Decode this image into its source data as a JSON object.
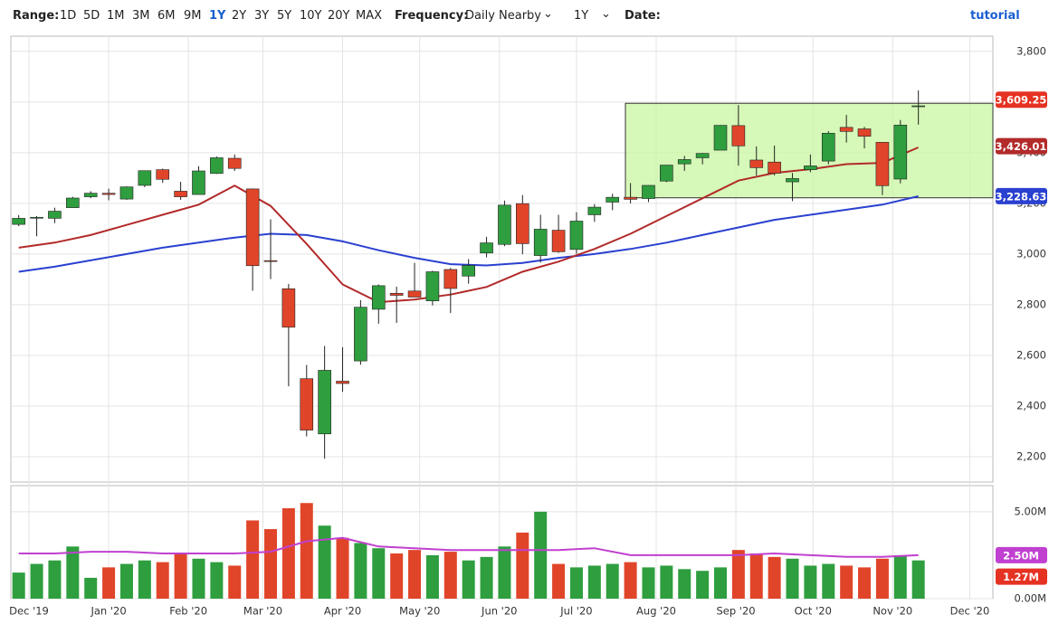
{
  "toolbar": {
    "range_label": "Range:",
    "ranges": [
      "1D",
      "5D",
      "1M",
      "3M",
      "6M",
      "9M",
      "1Y",
      "2Y",
      "3Y",
      "5Y",
      "10Y",
      "20Y",
      "MAX"
    ],
    "active_range": "1Y",
    "frequency_label": "Frequency:",
    "frequency": "Daily Nearby",
    "period": "1Y",
    "date_label": "Date:",
    "tutorial": "tutorial"
  },
  "chart_data": {
    "type": "candlestick",
    "xticks": [
      "Dec '19",
      "Jan '20",
      "Feb '20",
      "Mar '20",
      "Apr '20",
      "May '20",
      "Jun '20",
      "Jul '20",
      "Aug '20",
      "Sep '20",
      "Oct '20",
      "Nov '20",
      "Dec '20"
    ],
    "open": [
      3117,
      3144,
      3141,
      3183,
      3226,
      3240,
      3217,
      3271,
      3333,
      3248,
      3235,
      3318,
      3378,
      3257,
      2974,
      2863,
      2508,
      2290,
      2498,
      2578,
      2782,
      2845,
      2854,
      2815,
      2939,
      2913,
      3004,
      3038,
      3199,
      2994,
      3094,
      3018,
      3155,
      3205,
      3224,
      3219,
      3288,
      3356,
      3380,
      3410,
      3507,
      3371,
      3363,
      3285,
      3333,
      3367,
      3500,
      3494,
      3441,
      3296,
      3583
    ],
    "high": [
      3154,
      3150,
      3183,
      3226,
      3248,
      3258,
      3267,
      3329,
      3337,
      3285,
      3347,
      3385,
      3393,
      3259,
      3137,
      2882,
      2562,
      2637,
      2632,
      2818,
      2880,
      2871,
      2965,
      2934,
      2945,
      2980,
      3068,
      3211,
      3233,
      3155,
      3155,
      3165,
      3197,
      3238,
      3280,
      3272,
      3352,
      3387,
      3399,
      3509,
      3588,
      3425,
      3428,
      3320,
      3393,
      3485,
      3549,
      3502,
      3441,
      3529,
      3646
    ],
    "low": [
      3110,
      3070,
      3122,
      3183,
      3220,
      3212,
      3214,
      3264,
      3281,
      3214,
      3235,
      3316,
      3328,
      2855,
      2901,
      2478,
      2280,
      2192,
      2456,
      2563,
      2725,
      2728,
      2830,
      2797,
      2767,
      2883,
      2987,
      3031,
      2999,
      2966,
      3005,
      3001,
      3127,
      3173,
      3200,
      3205,
      3284,
      3328,
      3354,
      3410,
      3349,
      3310,
      3310,
      3209,
      3323,
      3354,
      3440,
      3417,
      3233,
      3279,
      3511
    ],
    "close": [
      3141,
      3145,
      3169,
      3221,
      3240,
      3235,
      3265,
      3329,
      3295,
      3226,
      3328,
      3380,
      3338,
      2954,
      2972,
      2711,
      2305,
      2541,
      2489,
      2790,
      2875,
      2837,
      2830,
      2930,
      2864,
      2955,
      3044,
      3193,
      3041,
      3098,
      3009,
      3130,
      3185,
      3224,
      3216,
      3271,
      3351,
      3373,
      3397,
      3508,
      3427,
      3341,
      3319,
      3298,
      3348,
      3477,
      3484,
      3465,
      3270,
      3509,
      3585
    ],
    "ma_fast": {
      "color": "#b22a2a",
      "values": [
        3025,
        3045,
        3075,
        3115,
        3155,
        3195,
        3270,
        3190,
        3040,
        2880,
        2810,
        2820,
        2840,
        2870,
        2930,
        2970,
        3020,
        3080,
        3150,
        3220,
        3290,
        3320,
        3335,
        3355,
        3360,
        3421
      ]
    },
    "ma_slow": {
      "color": "#2a40d0",
      "values": [
        2930,
        2950,
        2975,
        3000,
        3025,
        3045,
        3065,
        3080,
        3075,
        3050,
        3015,
        2985,
        2960,
        2955,
        2965,
        2985,
        3000,
        3020,
        3045,
        3075,
        3105,
        3135,
        3155,
        3175,
        3195,
        3228
      ]
    },
    "up_color": "#2e9e3e",
    "down_color": "#e0452a",
    "ylim": [
      2100,
      3860
    ],
    "yticks": [
      {
        "value": 2200,
        "label": "2,200"
      },
      {
        "value": 2400,
        "label": "2,400"
      },
      {
        "value": 2600,
        "label": "2,600"
      },
      {
        "value": 2800,
        "label": "2,800"
      },
      {
        "value": 3000,
        "label": "3,000"
      },
      {
        "value": 3200,
        "label": "3,200"
      },
      {
        "value": 3400,
        "label": "3,400"
      },
      {
        "value": 3600,
        "label": "3,600"
      },
      {
        "value": 3800,
        "label": "3,800"
      }
    ],
    "range_box": {
      "top": 3595,
      "bottom": 3222,
      "color": "#c8f5a0"
    },
    "price_labels": [
      {
        "value": 3609.25,
        "label": "3,609.25",
        "color": "#e53222"
      },
      {
        "value": 3426.01,
        "label": "3,426.01",
        "color": "#b22a2a"
      },
      {
        "value": 3228.63,
        "label": "3,228.63",
        "color": "#2a40d0"
      }
    ],
    "volume": [
      1.5,
      2.0,
      2.2,
      3.0,
      1.2,
      1.8,
      2.0,
      2.2,
      2.1,
      2.6,
      2.3,
      2.1,
      1.9,
      4.5,
      4.0,
      5.2,
      5.5,
      4.2,
      3.5,
      3.2,
      2.9,
      2.6,
      2.8,
      2.5,
      2.7,
      2.2,
      2.4,
      3.0,
      3.8,
      5.0,
      2.0,
      1.8,
      1.9,
      2.0,
      2.1,
      1.8,
      1.9,
      1.7,
      1.6,
      1.8,
      2.8,
      2.6,
      2.4,
      2.3,
      1.9,
      2.0,
      1.9,
      1.8,
      2.3,
      2.5,
      2.2
    ],
    "volume_avg": {
      "color": "#c040d0",
      "values": [
        2.6,
        2.6,
        2.7,
        2.7,
        2.6,
        2.6,
        2.6,
        2.7,
        3.3,
        3.5,
        3.0,
        2.9,
        2.8,
        2.8,
        2.8,
        2.8,
        2.9,
        2.5,
        2.5,
        2.5,
        2.5,
        2.6,
        2.5,
        2.4,
        2.4,
        2.5
      ]
    },
    "volume_ylim": [
      0,
      6.5
    ],
    "volume_yticks": [
      {
        "value": 0,
        "label": "0.00M"
      },
      {
        "value": 5,
        "label": "5.00M"
      }
    ],
    "volume_labels": [
      {
        "value": 2.5,
        "label": "2.50M",
        "color": "#c040d0"
      },
      {
        "value": 1.27,
        "label": "1.27M",
        "color": "#e53222"
      }
    ]
  }
}
